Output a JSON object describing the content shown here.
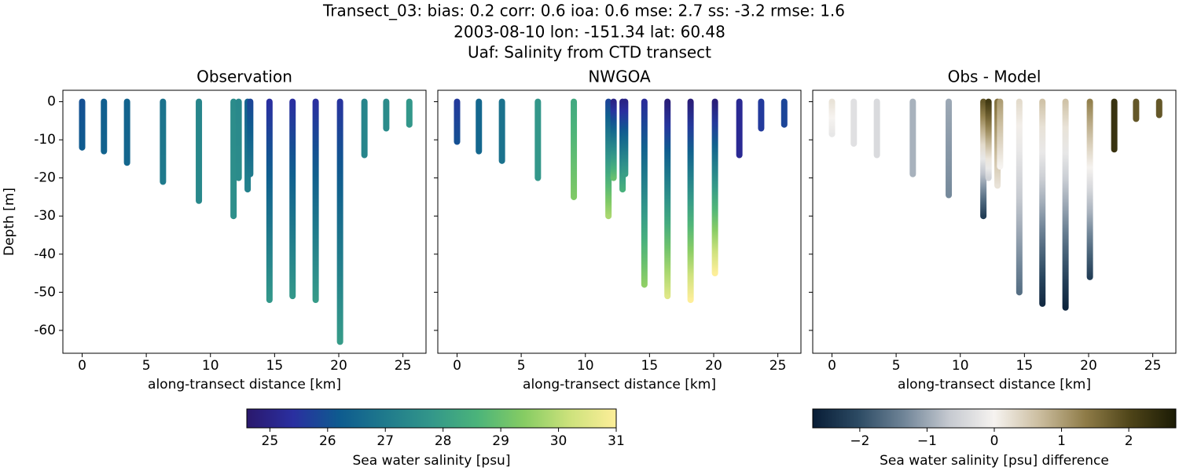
{
  "title": [
    "Transect_03: bias: 0.2  corr: 0.6  ioa: 0.6  mse: 2.7  ss: -3.2  rmse: 1.6",
    "2003-08-10 lon: -151.34 lat: 60.48",
    "Uaf: Salinity from CTD transect"
  ],
  "chart_data": [
    {
      "type": "profile",
      "title": "Observation",
      "xlabel": "along-transect distance [km]",
      "ylabel": "Depth [m]",
      "colorbar": 0,
      "xlim": [
        -1.5,
        26.8
      ],
      "ylim": [
        -66,
        3
      ],
      "xticks": [
        0,
        5,
        10,
        15,
        20,
        25
      ],
      "yticks": [
        0,
        -10,
        -20,
        -30,
        -40,
        -50,
        -60
      ],
      "ytick_labels": true,
      "x": [
        0,
        1.7,
        3.5,
        6.3,
        9.1,
        11.8,
        12.2,
        12.9,
        13.1,
        14.6,
        16.4,
        18.2,
        20.1,
        22.0,
        23.7,
        25.5
      ],
      "bottom": [
        -12,
        -13,
        -16,
        -21,
        -26,
        -30,
        -20,
        -23,
        -19,
        -52,
        -51,
        -52,
        -63,
        -14,
        -7,
        -6
      ],
      "value_top": [
        26.0,
        26.3,
        26.4,
        26.8,
        27.3,
        27.5,
        27.4,
        26.4,
        25.8,
        25.4,
        25.4,
        25.4,
        25.5,
        27.3,
        27.5,
        27.8
      ],
      "value_bottom": [
        26.2,
        26.4,
        26.5,
        27.0,
        27.4,
        27.6,
        27.5,
        27.2,
        27.0,
        27.8,
        27.8,
        27.9,
        27.9,
        27.3,
        27.5,
        27.8
      ]
    },
    {
      "type": "profile",
      "title": "NWGOA",
      "xlabel": "along-transect distance [km]",
      "colorbar": 0,
      "xlim": [
        -1.5,
        26.8
      ],
      "ylim": [
        -66,
        3
      ],
      "xticks": [
        0,
        5,
        10,
        15,
        20,
        25
      ],
      "yticks": [
        0,
        -10,
        -20,
        -30,
        -40,
        -50,
        -60
      ],
      "ytick_labels": false,
      "x": [
        0,
        1.7,
        3.5,
        6.3,
        9.1,
        11.8,
        12.2,
        12.9,
        13.1,
        14.6,
        16.4,
        18.2,
        20.1,
        22.0,
        23.7,
        25.5
      ],
      "bottom": [
        -10.5,
        -13,
        -15.5,
        -20,
        -25,
        -30,
        -20,
        -23,
        -19,
        -48,
        -51,
        -52,
        -45,
        -14,
        -7,
        -6
      ],
      "value_top": [
        25.6,
        26.5,
        26.8,
        27.8,
        28.3,
        25.8,
        25.0,
        25.0,
        25.0,
        25.3,
        24.8,
        24.8,
        24.8,
        25.2,
        25.6,
        25.8
      ],
      "value_bottom": [
        26.0,
        26.5,
        26.8,
        27.8,
        29.3,
        29.8,
        29.0,
        28.5,
        28.0,
        29.5,
        30.5,
        31.0,
        31.0,
        25.2,
        25.6,
        25.8
      ]
    },
    {
      "type": "profile",
      "title": "Obs - Model",
      "xlabel": "along-transect distance [km]",
      "colorbar": 1,
      "xlim": [
        -1.5,
        26.8
      ],
      "ylim": [
        -66,
        3
      ],
      "xticks": [
        0,
        5,
        10,
        15,
        20,
        25
      ],
      "yticks": [
        0,
        -10,
        -20,
        -30,
        -40,
        -50,
        -60
      ],
      "ytick_labels": false,
      "x": [
        0,
        1.7,
        3.5,
        6.3,
        9.1,
        11.8,
        12.2,
        12.9,
        13.1,
        14.6,
        16.4,
        18.2,
        20.1,
        22.0,
        23.7,
        25.5
      ],
      "bottom": [
        -8.5,
        -11,
        -14,
        -19,
        -24.5,
        -30,
        -20,
        -22,
        -17,
        -50,
        -53,
        -54,
        -46,
        -12.5,
        -4.5,
        -3.5
      ],
      "value_top": [
        0.2,
        -0.3,
        -0.4,
        -0.9,
        -1.0,
        1.8,
        2.2,
        1.5,
        1.0,
        0.3,
        0.6,
        0.6,
        1.3,
        2.3,
        1.8,
        1.8
      ],
      "value_bottom": [
        -0.2,
        -0.3,
        -0.4,
        -0.9,
        -1.3,
        -2.2,
        -0.5,
        0.2,
        0.0,
        -1.6,
        -2.5,
        -2.6,
        -2.2,
        2.3,
        1.8,
        1.8
      ]
    }
  ],
  "colorbars": [
    {
      "label": "Sea water salinity [psu]",
      "lim": [
        24.6,
        31
      ],
      "ticks": [
        25,
        26,
        27,
        28,
        29,
        30,
        31
      ],
      "colormap": [
        "#2a186c",
        "#2a2fa0",
        "#0e5b8f",
        "#1f7a8c",
        "#33978a",
        "#4bb47a",
        "#86cc63",
        "#cde27c",
        "#fdee99"
      ]
    },
    {
      "label": "Sea water salinity [psu] difference",
      "lim": [
        -2.7,
        2.7
      ],
      "ticks": [
        {
          "value": -2,
          "label": "−2"
        },
        {
          "value": -1,
          "label": "−1"
        },
        0,
        1,
        2
      ],
      "colormap": [
        "#081d36",
        "#2c4a63",
        "#6f8497",
        "#c5c9d0",
        "#f6f3f0",
        "#cbbd9f",
        "#8f7c48",
        "#4e4418",
        "#1b1b05"
      ]
    }
  ]
}
